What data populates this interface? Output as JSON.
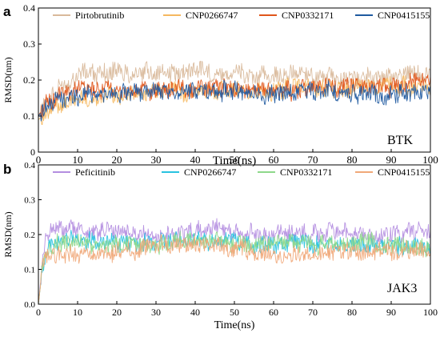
{
  "chart_data": [
    {
      "panel_label": "a",
      "type": "line",
      "xlabel": "Time(ns)",
      "ylabel": "RMSD(nm)",
      "xlim": [
        0,
        100
      ],
      "ylim": [
        0,
        0.4
      ],
      "xticks": [
        0,
        10,
        20,
        30,
        40,
        50,
        60,
        70,
        80,
        90,
        100
      ],
      "yticks": [
        0,
        0.1,
        0.2,
        0.3,
        0.4
      ],
      "ytick_labels": [
        "0",
        "0.1",
        "0.2",
        "0.3",
        "0.4"
      ],
      "annotation": "BTK",
      "grid": false,
      "legend_position": "top",
      "series": [
        {
          "name": "Pirtobrutinib",
          "color": "#d9b99b",
          "x": [
            0,
            2,
            4,
            6,
            8,
            10,
            12,
            15,
            20,
            25,
            30,
            35,
            40,
            45,
            50,
            55,
            60,
            65,
            70,
            75,
            80,
            85,
            90,
            95,
            100
          ],
          "y": [
            0.1,
            0.14,
            0.16,
            0.18,
            0.2,
            0.21,
            0.22,
            0.22,
            0.22,
            0.22,
            0.22,
            0.22,
            0.23,
            0.22,
            0.22,
            0.21,
            0.21,
            0.22,
            0.21,
            0.21,
            0.21,
            0.21,
            0.21,
            0.22,
            0.22
          ]
        },
        {
          "name": "CNP0266747",
          "color": "#f5b860",
          "x": [
            0,
            2,
            4,
            6,
            8,
            10,
            12,
            15,
            20,
            25,
            30,
            35,
            40,
            45,
            50,
            55,
            60,
            65,
            70,
            75,
            80,
            85,
            90,
            95,
            100
          ],
          "y": [
            0.09,
            0.11,
            0.12,
            0.13,
            0.14,
            0.14,
            0.15,
            0.15,
            0.16,
            0.16,
            0.17,
            0.17,
            0.17,
            0.17,
            0.17,
            0.17,
            0.17,
            0.18,
            0.18,
            0.18,
            0.18,
            0.18,
            0.18,
            0.18,
            0.19
          ]
        },
        {
          "name": "CNP0332171",
          "color": "#e0561b",
          "x": [
            0,
            2,
            4,
            6,
            8,
            10,
            12,
            15,
            20,
            25,
            30,
            35,
            40,
            45,
            50,
            55,
            60,
            65,
            70,
            75,
            80,
            85,
            90,
            95,
            100
          ],
          "y": [
            0.1,
            0.14,
            0.15,
            0.16,
            0.17,
            0.18,
            0.17,
            0.17,
            0.17,
            0.17,
            0.17,
            0.17,
            0.18,
            0.18,
            0.17,
            0.17,
            0.17,
            0.17,
            0.18,
            0.18,
            0.18,
            0.18,
            0.18,
            0.19,
            0.2
          ]
        },
        {
          "name": "CNP0415155",
          "color": "#1f5aa0",
          "x": [
            0,
            2,
            4,
            6,
            8,
            10,
            12,
            15,
            20,
            25,
            30,
            35,
            40,
            45,
            50,
            55,
            60,
            65,
            70,
            75,
            80,
            85,
            90,
            95,
            100
          ],
          "y": [
            0.1,
            0.13,
            0.14,
            0.15,
            0.15,
            0.15,
            0.16,
            0.16,
            0.16,
            0.17,
            0.17,
            0.17,
            0.18,
            0.17,
            0.17,
            0.16,
            0.16,
            0.17,
            0.17,
            0.17,
            0.16,
            0.16,
            0.16,
            0.17,
            0.17
          ]
        }
      ]
    },
    {
      "panel_label": "b",
      "type": "line",
      "xlabel": "Time(ns)",
      "ylabel": "RMSD(nm)",
      "xlim": [
        0,
        100
      ],
      "ylim": [
        0,
        0.4
      ],
      "xticks": [
        0,
        10,
        20,
        30,
        40,
        50,
        60,
        70,
        80,
        90,
        100
      ],
      "yticks": [
        0,
        0.1,
        0.2,
        0.3,
        0.4
      ],
      "ytick_labels": [
        "0.0",
        "0.1",
        "0.2",
        "0.3",
        "0.4"
      ],
      "annotation": "JAK3",
      "grid": false,
      "legend_position": "top",
      "series": [
        {
          "name": "Peficitinib",
          "color": "#b48ee0",
          "x": [
            0,
            1,
            2,
            4,
            6,
            8,
            10,
            15,
            20,
            25,
            30,
            35,
            40,
            45,
            50,
            55,
            60,
            65,
            70,
            75,
            80,
            85,
            90,
            95,
            100
          ],
          "y": [
            0.0,
            0.12,
            0.2,
            0.22,
            0.21,
            0.22,
            0.21,
            0.21,
            0.21,
            0.2,
            0.2,
            0.2,
            0.21,
            0.22,
            0.21,
            0.2,
            0.2,
            0.2,
            0.2,
            0.21,
            0.2,
            0.2,
            0.2,
            0.21,
            0.21
          ]
        },
        {
          "name": "CNP0266747",
          "color": "#29c3e0",
          "x": [
            0,
            1,
            2,
            4,
            6,
            8,
            10,
            15,
            20,
            25,
            30,
            35,
            40,
            45,
            50,
            55,
            60,
            65,
            70,
            75,
            80,
            85,
            90,
            95,
            100
          ],
          "y": [
            0.0,
            0.1,
            0.16,
            0.18,
            0.18,
            0.19,
            0.18,
            0.18,
            0.18,
            0.17,
            0.18,
            0.18,
            0.18,
            0.18,
            0.18,
            0.17,
            0.17,
            0.18,
            0.17,
            0.17,
            0.17,
            0.17,
            0.17,
            0.17,
            0.16
          ]
        },
        {
          "name": "CNP0332171",
          "color": "#8ed88a",
          "x": [
            0,
            1,
            2,
            4,
            6,
            8,
            10,
            15,
            20,
            25,
            30,
            35,
            40,
            45,
            50,
            55,
            60,
            65,
            70,
            75,
            80,
            85,
            90,
            95,
            100
          ],
          "y": [
            0.0,
            0.1,
            0.15,
            0.17,
            0.18,
            0.18,
            0.18,
            0.17,
            0.17,
            0.17,
            0.17,
            0.18,
            0.18,
            0.18,
            0.17,
            0.17,
            0.18,
            0.18,
            0.17,
            0.17,
            0.18,
            0.18,
            0.17,
            0.17,
            0.16
          ]
        },
        {
          "name": "CNP0415155",
          "color": "#f0a878",
          "x": [
            0,
            1,
            2,
            4,
            6,
            8,
            10,
            15,
            20,
            25,
            30,
            35,
            40,
            45,
            50,
            55,
            60,
            65,
            70,
            75,
            80,
            85,
            90,
            95,
            100
          ],
          "y": [
            0.0,
            0.1,
            0.14,
            0.14,
            0.14,
            0.14,
            0.14,
            0.14,
            0.15,
            0.15,
            0.17,
            0.17,
            0.17,
            0.17,
            0.16,
            0.15,
            0.14,
            0.14,
            0.14,
            0.15,
            0.15,
            0.15,
            0.15,
            0.16,
            0.16
          ]
        }
      ]
    }
  ]
}
